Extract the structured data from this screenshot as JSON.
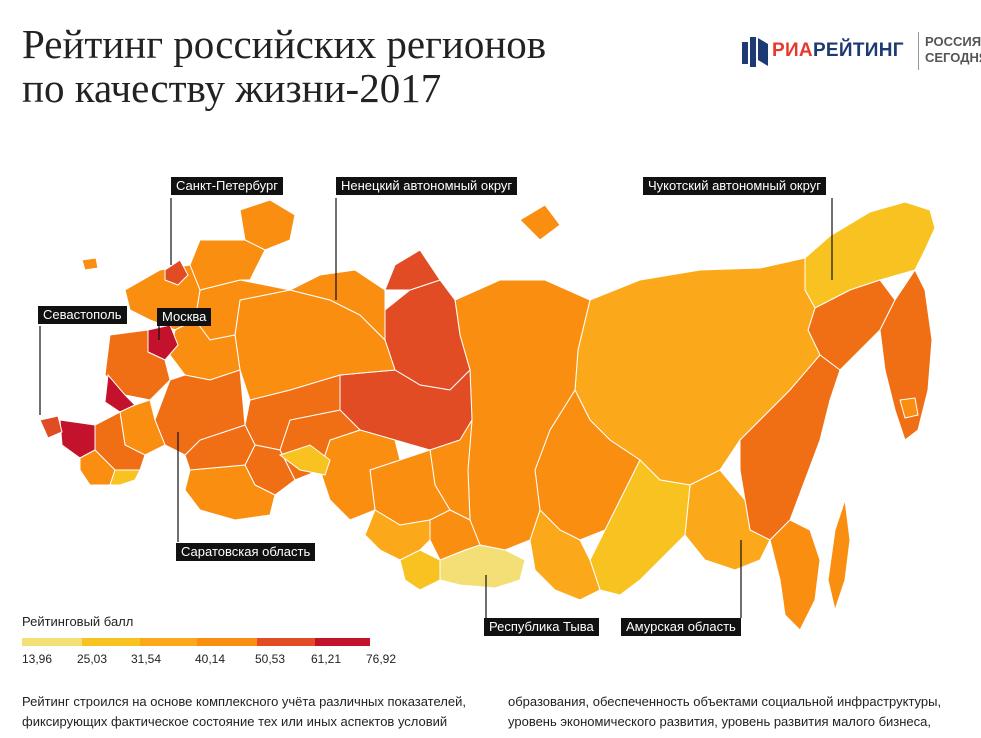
{
  "title_line1": "Рейтинг российских регионов",
  "title_line2": "по качеству жизни-2017",
  "logo": {
    "ria": "РИА",
    "rating": "РЕЙТИНГ",
    "russia": "РОССИЯ",
    "today": "СЕГОДНЯ"
  },
  "colors": {
    "c1": "#f3df76",
    "c2": "#f8c321",
    "c3": "#fba91a",
    "c4": "#f98e11",
    "c5": "#f06e14",
    "c6": "#e24c24",
    "c7": "#c4112c",
    "land_stroke": "#ffffff"
  },
  "callouts": {
    "spb": "Санкт-Петербург",
    "nenets": "Ненецкий автономный округ",
    "chukotka": "Чукотский автономный округ",
    "sevastopol": "Севастополь",
    "moscow": "Москва",
    "saratov": "Саратовская область",
    "tyva": "Республика Тыва",
    "amur": "Амурская область"
  },
  "legend": {
    "title": "Рейтинговый балл",
    "ticks": [
      "13,96",
      "25,03",
      "31,54",
      "40,14",
      "50,53",
      "61,21",
      "76,92"
    ]
  },
  "description": {
    "col1_line1": "Рейтинг строился на основе комплексного учёта различных показателей,",
    "col1_line2": "фиксирующих фактическое состояние тех или иных аспектов условий",
    "col2_line1": "образования, обеспеченность объектами социальной инфраструктуры,",
    "col2_line2": "уровень экономического развития, уровень развития малого бизнеса,"
  }
}
